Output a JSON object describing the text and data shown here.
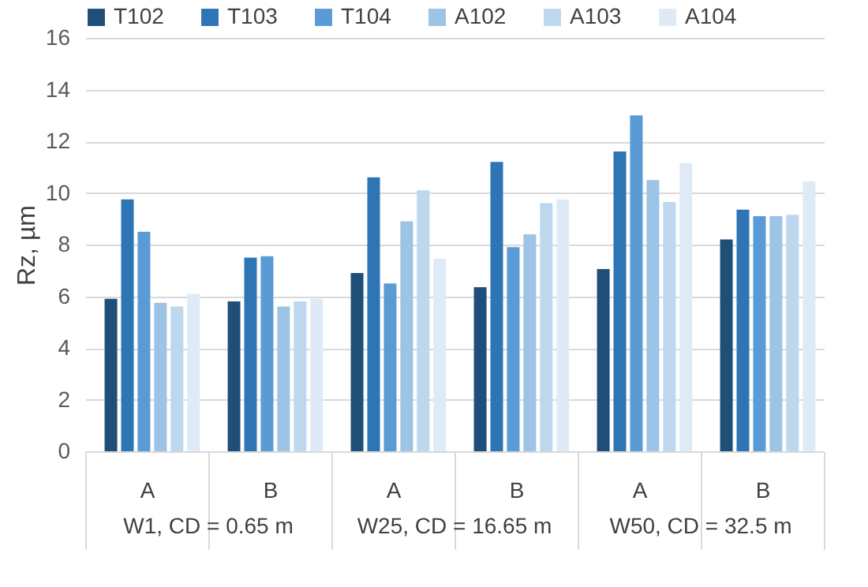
{
  "chart_data": {
    "type": "bar",
    "ylabel": "Rz, µm",
    "categories": [
      "A",
      "B",
      "A",
      "B",
      "A",
      "B"
    ],
    "series": [
      {
        "name": "T102",
        "color": "#1f4e79",
        "values": [
          5.9,
          5.8,
          6.9,
          6.35,
          7.05,
          8.2
        ]
      },
      {
        "name": "T103",
        "color": "#2e75b6",
        "values": [
          9.75,
          7.5,
          10.6,
          11.2,
          11.6,
          9.35
        ]
      },
      {
        "name": "T104",
        "color": "#5b9bd5",
        "values": [
          8.5,
          7.55,
          6.5,
          7.9,
          13.0,
          9.1
        ]
      },
      {
        "name": "A102",
        "color": "#9dc3e6",
        "values": [
          5.75,
          5.6,
          8.9,
          8.4,
          10.5,
          9.1
        ]
      },
      {
        "name": "A103",
        "color": "#bdd7ee",
        "values": [
          5.6,
          5.8,
          10.1,
          9.6,
          9.65,
          9.15
        ]
      },
      {
        "name": "A104",
        "color": "#deebf7",
        "values": [
          6.1,
          5.9,
          7.45,
          9.75,
          11.15,
          10.45
        ]
      }
    ],
    "annotations": [
      "W1, CD = 0.65 m",
      "W25, CD = 16.65 m",
      "W50, CD = 32.5 m"
    ],
    "ylim": [
      0,
      16
    ],
    "yticks": [
      0,
      2,
      4,
      6,
      8,
      10,
      12,
      14,
      16
    ],
    "grid": "y",
    "legend": "top"
  }
}
